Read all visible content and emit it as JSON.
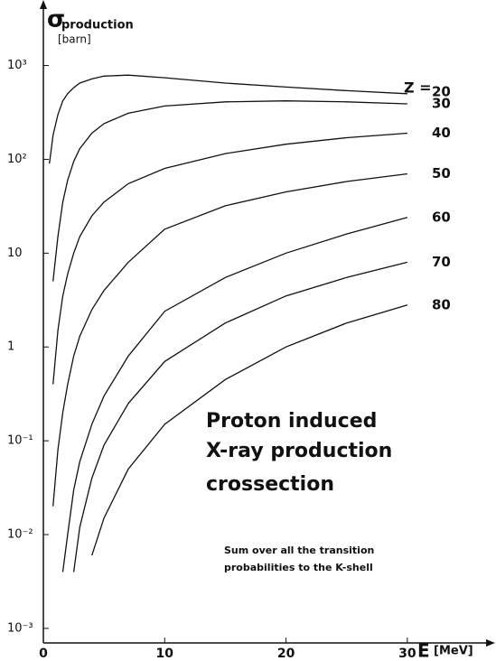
{
  "chart_data": {
    "type": "line",
    "y_label_symbol": "σ",
    "y_label_sub": "production",
    "y_label_unit": "[barn]",
    "x_label": "E",
    "x_label_unit": "[MeV]",
    "legend_title": "Z =",
    "annotations": [
      "Proton induced",
      "X-ray production",
      "crossection"
    ],
    "note": [
      "Sum over all the transition",
      "probabilities to the K-shell"
    ],
    "log_y": true,
    "xlim": [
      0,
      35
    ],
    "xticks": [
      0,
      10,
      20,
      30
    ],
    "ylim": [
      0.0007,
      4000
    ],
    "yticks": [
      {
        "value": 0.001,
        "label": "10⁻³"
      },
      {
        "value": 0.01,
        "label": "10⁻²"
      },
      {
        "value": 0.1,
        "label": "10⁻¹"
      },
      1,
      10,
      {
        "value": 100,
        "label": "10²"
      },
      {
        "value": 1000,
        "label": "10³"
      }
    ],
    "x": [
      0.5,
      0.8,
      1.2,
      1.6,
      2,
      2.5,
      3,
      4,
      5,
      7,
      10,
      15,
      20,
      25,
      30
    ],
    "series": [
      {
        "name": "20",
        "color": "#111111",
        "values": [
          90,
          180,
          300,
          420,
          500,
          580,
          650,
          720,
          770,
          790,
          740,
          650,
          590,
          540,
          500
        ]
      },
      {
        "name": "30",
        "color": "#111111",
        "values": [
          null,
          5,
          15,
          35,
          60,
          95,
          130,
          190,
          240,
          310,
          370,
          410,
          420,
          410,
          390
        ]
      },
      {
        "name": "40",
        "color": "#111111",
        "values": [
          null,
          0.4,
          1.5,
          3.5,
          6,
          10,
          15,
          25,
          35,
          55,
          80,
          115,
          145,
          170,
          190
        ]
      },
      {
        "name": "50",
        "color": "#111111",
        "values": [
          null,
          0.02,
          0.08,
          0.2,
          0.4,
          0.8,
          1.3,
          2.5,
          4,
          8,
          18,
          32,
          45,
          58,
          70
        ]
      },
      {
        "name": "60",
        "color": "#111111",
        "values": [
          null,
          null,
          null,
          0.004,
          0.01,
          0.03,
          0.06,
          0.15,
          0.3,
          0.8,
          2.4,
          5.5,
          10,
          16,
          24
        ]
      },
      {
        "name": "70",
        "color": "#111111",
        "values": [
          null,
          null,
          null,
          null,
          null,
          0.004,
          0.012,
          0.04,
          0.09,
          0.25,
          0.7,
          1.8,
          3.5,
          5.5,
          8
        ]
      },
      {
        "name": "80",
        "color": "#111111",
        "values": [
          null,
          null,
          null,
          null,
          null,
          null,
          null,
          0.006,
          0.015,
          0.05,
          0.15,
          0.45,
          1,
          1.8,
          2.8
        ]
      }
    ]
  }
}
